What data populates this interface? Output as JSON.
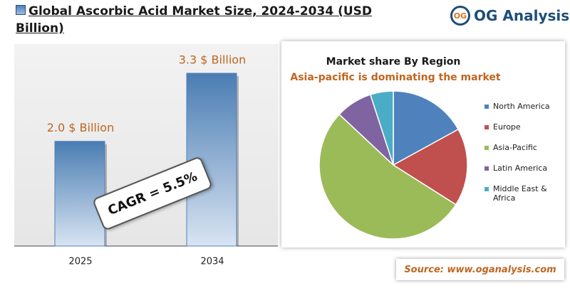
{
  "header": {
    "title": "Global Ascorbic Acid Market Size, 2024-2034 (USD Billion)",
    "logo_icon": "OG",
    "logo": "OG Analysis"
  },
  "chart_data": [
    {
      "type": "bar",
      "categories": [
        "2025",
        "2034"
      ],
      "values": [
        2.0,
        3.3
      ],
      "value_labels": [
        "2.0 $ Billion",
        "3.3 $ Billion"
      ],
      "color": "#4f81bd",
      "annotation": "CAGR = 5.5%"
    },
    {
      "type": "pie",
      "title": "Market share By Region",
      "subtitle": "Asia-pacific is dominating the market",
      "categories": [
        "North America",
        "Europe",
        "Asia-Pacific",
        "Latin America",
        "Middle East & Africa"
      ],
      "values": [
        17,
        17,
        53,
        8,
        5
      ],
      "colors": [
        "#4f81bd",
        "#c0504d",
        "#9bbb59",
        "#8064a2",
        "#4bacc6"
      ]
    }
  ],
  "footer": {
    "source": "Source: www.oganalysis.com"
  }
}
